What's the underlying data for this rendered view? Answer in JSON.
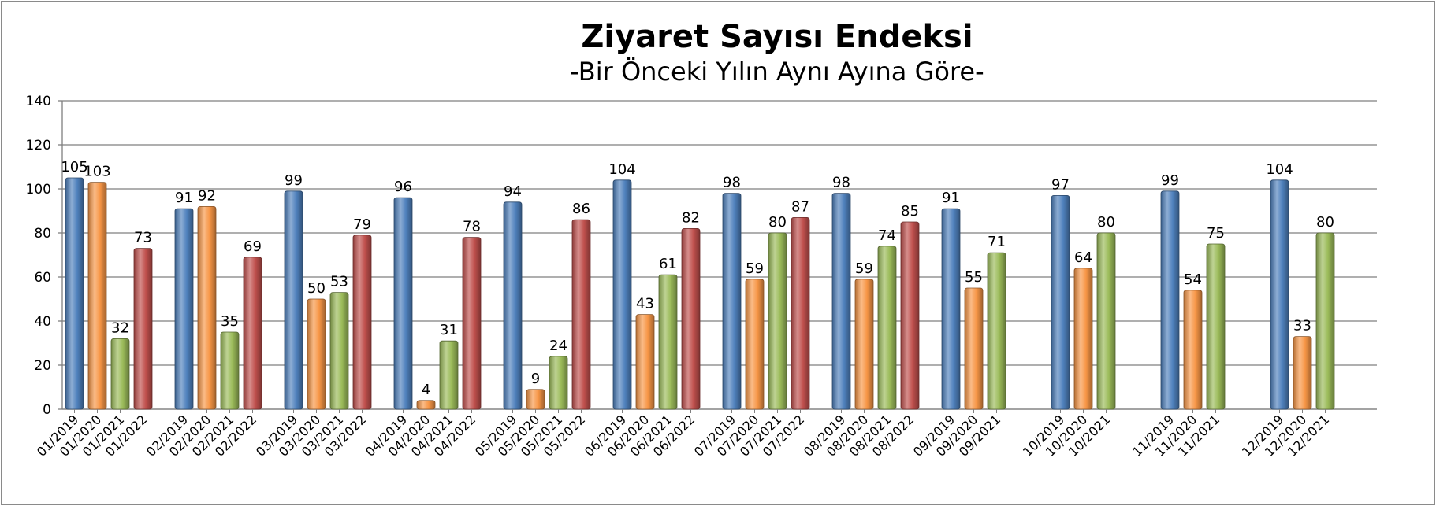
{
  "chart_data": {
    "type": "bar",
    "title": "Ziyaret Sayısı Endeksi",
    "subtitle": "-Bir Önceki Yılın Aynı Ayına Göre-",
    "xlabel": "",
    "ylabel": "",
    "ylim": [
      0,
      140
    ],
    "yticks": [
      0,
      20,
      40,
      60,
      80,
      100,
      120,
      140
    ],
    "grid": true,
    "legend": "none",
    "colors": {
      "2019": "#4f81bd",
      "2020": "#f79646",
      "2021": "#9bbb59",
      "2022": "#c0504d"
    },
    "groups": [
      {
        "bars": [
          {
            "label": "01/2019",
            "year": "2019",
            "value": 105
          },
          {
            "label": "01/2020",
            "year": "2020",
            "value": 103
          },
          {
            "label": "01/2021",
            "year": "2021",
            "value": 32
          },
          {
            "label": "01/2022",
            "year": "2022",
            "value": 73
          }
        ]
      },
      {
        "bars": [
          {
            "label": "02/2019",
            "year": "2019",
            "value": 91
          },
          {
            "label": "02/2020",
            "year": "2020",
            "value": 92
          },
          {
            "label": "02/2021",
            "year": "2021",
            "value": 35
          },
          {
            "label": "02/2022",
            "year": "2022",
            "value": 69
          }
        ]
      },
      {
        "bars": [
          {
            "label": "03/2019",
            "year": "2019",
            "value": 99
          },
          {
            "label": "03/2020",
            "year": "2020",
            "value": 50
          },
          {
            "label": "03/2021",
            "year": "2021",
            "value": 53
          },
          {
            "label": "03/2022",
            "year": "2022",
            "value": 79
          }
        ]
      },
      {
        "bars": [
          {
            "label": "04/2019",
            "year": "2019",
            "value": 96
          },
          {
            "label": "04/2020",
            "year": "2020",
            "value": 4
          },
          {
            "label": "04/2021",
            "year": "2021",
            "value": 31
          },
          {
            "label": "04/2022",
            "year": "2022",
            "value": 78
          }
        ]
      },
      {
        "bars": [
          {
            "label": "05/2019",
            "year": "2019",
            "value": 94
          },
          {
            "label": "05/2020",
            "year": "2020",
            "value": 9
          },
          {
            "label": "05/2021",
            "year": "2021",
            "value": 24
          },
          {
            "label": "05/2022",
            "year": "2022",
            "value": 86
          }
        ]
      },
      {
        "bars": [
          {
            "label": "06/2019",
            "year": "2019",
            "value": 104
          },
          {
            "label": "06/2020",
            "year": "2020",
            "value": 43
          },
          {
            "label": "06/2021",
            "year": "2021",
            "value": 61
          },
          {
            "label": "06/2022",
            "year": "2022",
            "value": 82
          }
        ]
      },
      {
        "bars": [
          {
            "label": "07/2019",
            "year": "2019",
            "value": 98
          },
          {
            "label": "07/2020",
            "year": "2020",
            "value": 59
          },
          {
            "label": "07/2021",
            "year": "2021",
            "value": 80
          },
          {
            "label": "07/2022",
            "year": "2022",
            "value": 87
          }
        ]
      },
      {
        "bars": [
          {
            "label": "08/2019",
            "year": "2019",
            "value": 98
          },
          {
            "label": "08/2020",
            "year": "2020",
            "value": 59
          },
          {
            "label": "08/2021",
            "year": "2021",
            "value": 74
          },
          {
            "label": "08/2022",
            "year": "2022",
            "value": 85
          }
        ]
      },
      {
        "bars": [
          {
            "label": "09/2019",
            "year": "2019",
            "value": 91
          },
          {
            "label": "09/2020",
            "year": "2020",
            "value": 55
          },
          {
            "label": "09/2021",
            "year": "2021",
            "value": 71
          }
        ]
      },
      {
        "bars": [
          {
            "label": "10/2019",
            "year": "2019",
            "value": 97
          },
          {
            "label": "10/2020",
            "year": "2020",
            "value": 64
          },
          {
            "label": "10/2021",
            "year": "2021",
            "value": 80
          }
        ]
      },
      {
        "bars": [
          {
            "label": "11/2019",
            "year": "2019",
            "value": 99
          },
          {
            "label": "11/2020",
            "year": "2020",
            "value": 54
          },
          {
            "label": "11/2021",
            "year": "2021",
            "value": 75
          }
        ]
      },
      {
        "bars": [
          {
            "label": "12/2019",
            "year": "2019",
            "value": 104
          },
          {
            "label": "12/2020",
            "year": "2020",
            "value": 33
          },
          {
            "label": "12/2021",
            "year": "2021",
            "value": 80
          }
        ]
      }
    ]
  }
}
